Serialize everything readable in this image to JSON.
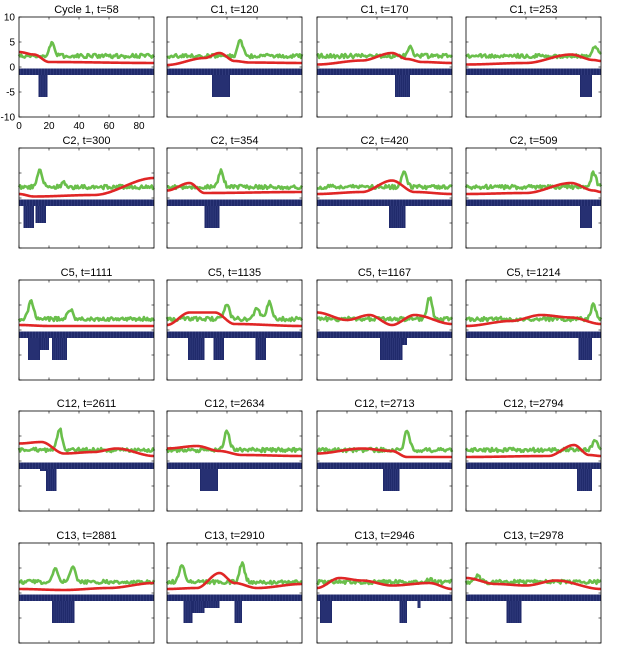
{
  "colors": {
    "green": "#6abf4b",
    "red": "#e02626",
    "bars": "#202a6b",
    "axes": "#000000"
  },
  "axes_ticks": {
    "y": [
      "10",
      "5",
      "0",
      "-5",
      "-10"
    ],
    "x": [
      "0",
      "20",
      "40",
      "60",
      "80"
    ]
  },
  "chart_data": {
    "type": "line",
    "layout": "grid of 5 rows x 4 columns",
    "x_range": [
      0,
      90
    ],
    "y_range": [
      -10,
      10
    ],
    "series_styles": [
      "green line",
      "red line",
      "navy bars (negative)"
    ],
    "panels": [
      {
        "title": "Cycle 1, t=58",
        "green_peaks": [
          [
            22,
            4.8
          ]
        ],
        "red": [
          [
            0,
            3.0
          ],
          [
            10,
            2.5
          ],
          [
            20,
            1.0
          ],
          [
            90,
            0.8
          ]
        ],
        "bars": [
          [
            13,
            19,
            -6
          ]
        ]
      },
      {
        "title": "C1, t=120",
        "green_peaks": [
          [
            49,
            5.3
          ]
        ],
        "red": [
          [
            0,
            0.4
          ],
          [
            25,
            1.8
          ],
          [
            35,
            2.8
          ],
          [
            45,
            1.2
          ],
          [
            55,
            0.9
          ],
          [
            90,
            0.8
          ]
        ],
        "bars": [
          [
            30,
            42,
            -6
          ]
        ]
      },
      {
        "title": "C1, t=170",
        "green_peaks": [
          [
            62,
            4.0
          ]
        ],
        "red": [
          [
            0,
            0.5
          ],
          [
            30,
            1.3
          ],
          [
            50,
            2.8
          ],
          [
            60,
            1.6
          ],
          [
            70,
            1.0
          ],
          [
            90,
            0.8
          ]
        ],
        "bars": [
          [
            52,
            62,
            -6
          ]
        ]
      },
      {
        "title": "C1, t=253",
        "green_peaks": [
          [
            86,
            4.2
          ]
        ],
        "red": [
          [
            0,
            0.5
          ],
          [
            40,
            0.8
          ],
          [
            70,
            2.5
          ],
          [
            85,
            1.4
          ],
          [
            90,
            1.2
          ]
        ],
        "bars": [
          [
            76,
            84,
            -6
          ]
        ]
      },
      {
        "title": "C2, t=300",
        "green_peaks": [
          [
            14,
            5.5
          ],
          [
            30,
            3.0
          ]
        ],
        "red": [
          [
            0,
            0.8
          ],
          [
            10,
            0.3
          ],
          [
            50,
            0.6
          ],
          [
            90,
            4.0
          ]
        ],
        "bars": [
          [
            3,
            10,
            -6
          ],
          [
            11,
            18,
            -5
          ]
        ]
      },
      {
        "title": "C2, t=354",
        "green_peaks": [
          [
            36,
            5.5
          ]
        ],
        "red": [
          [
            0,
            1.5
          ],
          [
            15,
            3.0
          ],
          [
            25,
            1.0
          ],
          [
            90,
            1.2
          ]
        ],
        "bars": [
          [
            25,
            35,
            -6
          ]
        ]
      },
      {
        "title": "C2, t=420",
        "green_peaks": [
          [
            58,
            5.0
          ]
        ],
        "red": [
          [
            0,
            0.8
          ],
          [
            30,
            1.2
          ],
          [
            50,
            3.5
          ],
          [
            65,
            1.2
          ],
          [
            90,
            0.8
          ]
        ],
        "bars": [
          [
            48,
            59,
            -6
          ]
        ]
      },
      {
        "title": "C2, t=509",
        "green_peaks": [
          [
            85,
            5.0
          ]
        ],
        "red": [
          [
            0,
            0.8
          ],
          [
            40,
            1.0
          ],
          [
            70,
            3.0
          ],
          [
            85,
            1.5
          ],
          [
            90,
            1.2
          ]
        ],
        "bars": [
          [
            76,
            84,
            -6
          ]
        ]
      },
      {
        "title": "C5, t=1111",
        "green_peaks": [
          [
            8,
            6.0
          ],
          [
            34,
            4.2
          ]
        ],
        "red": [
          [
            0,
            1.0
          ],
          [
            20,
            0.8
          ],
          [
            90,
            0.8
          ]
        ],
        "bars": [
          [
            6,
            14,
            -6
          ],
          [
            14,
            20,
            -4
          ],
          [
            22,
            32,
            -6
          ]
        ]
      },
      {
        "title": "C5, t=1135",
        "green_peaks": [
          [
            40,
            5.0
          ],
          [
            60,
            4.5
          ],
          [
            68,
            5.5
          ]
        ],
        "red": [
          [
            0,
            1.0
          ],
          [
            15,
            3.5
          ],
          [
            32,
            3.5
          ],
          [
            45,
            1.2
          ],
          [
            90,
            0.8
          ]
        ],
        "bars": [
          [
            14,
            25,
            -6
          ],
          [
            31,
            38,
            -6
          ],
          [
            59,
            66,
            -6
          ]
        ]
      },
      {
        "title": "C5, t=1167",
        "green_peaks": [
          [
            75,
            6.5
          ]
        ],
        "red": [
          [
            0,
            3.5
          ],
          [
            20,
            2.0
          ],
          [
            35,
            3.0
          ],
          [
            50,
            1.0
          ],
          [
            65,
            3.0
          ],
          [
            90,
            1.2
          ]
        ],
        "bars": [
          [
            42,
            57,
            -6
          ],
          [
            57,
            60,
            -3
          ]
        ]
      },
      {
        "title": "C5, t=1214",
        "green_peaks": [
          [
            85,
            5.0
          ]
        ],
        "red": [
          [
            0,
            0.8
          ],
          [
            30,
            1.8
          ],
          [
            50,
            3.0
          ],
          [
            70,
            2.5
          ],
          [
            90,
            1.2
          ]
        ],
        "bars": [
          [
            75,
            84,
            -6
          ]
        ]
      },
      {
        "title": "C12, t=2611",
        "green_peaks": [
          [
            27,
            6.5
          ]
        ],
        "red": [
          [
            0,
            3.5
          ],
          [
            15,
            3.8
          ],
          [
            30,
            1.5
          ],
          [
            50,
            1.8
          ],
          [
            65,
            2.5
          ],
          [
            90,
            1.0
          ]
        ],
        "bars": [
          [
            14,
            18,
            -2
          ],
          [
            18,
            25,
            -6
          ]
        ]
      },
      {
        "title": "C12, t=2634",
        "green_peaks": [
          [
            40,
            6.0
          ]
        ],
        "red": [
          [
            0,
            2.5
          ],
          [
            20,
            3.0
          ],
          [
            35,
            2.0
          ],
          [
            50,
            1.2
          ],
          [
            90,
            1.0
          ]
        ],
        "bars": [
          [
            22,
            34,
            -6
          ]
        ]
      },
      {
        "title": "C12, t=2713",
        "green_peaks": [
          [
            60,
            6.0
          ]
        ],
        "red": [
          [
            0,
            1.5
          ],
          [
            30,
            2.5
          ],
          [
            50,
            2.0
          ],
          [
            60,
            0.8
          ],
          [
            90,
            0.8
          ]
        ],
        "bars": [
          [
            44,
            55,
            -6
          ]
        ]
      },
      {
        "title": "C12, t=2794",
        "green_peaks": [
          [
            86,
            4.0
          ]
        ],
        "red": [
          [
            0,
            0.8
          ],
          [
            55,
            1.0
          ],
          [
            72,
            3.2
          ],
          [
            82,
            1.2
          ],
          [
            90,
            1.0
          ]
        ],
        "bars": [
          [
            74,
            84,
            -6
          ]
        ]
      },
      {
        "title": "C13, t=2881",
        "green_peaks": [
          [
            24,
            5.0
          ],
          [
            36,
            5.5
          ]
        ],
        "red": [
          [
            0,
            0.8
          ],
          [
            30,
            0.6
          ],
          [
            60,
            1.0
          ],
          [
            90,
            2.0
          ]
        ],
        "bars": [
          [
            22,
            37,
            -6
          ]
        ]
      },
      {
        "title": "C13, t=2910",
        "green_peaks": [
          [
            10,
            5.5
          ],
          [
            50,
            6.0
          ]
        ],
        "red": [
          [
            0,
            0.8
          ],
          [
            20,
            1.0
          ],
          [
            35,
            4.0
          ],
          [
            45,
            2.0
          ],
          [
            60,
            1.0
          ],
          [
            90,
            1.8
          ]
        ],
        "bars": [
          [
            11,
            17,
            -6
          ],
          [
            17,
            25,
            -4
          ],
          [
            25,
            35,
            -3
          ],
          [
            45,
            50,
            -6
          ]
        ]
      },
      {
        "title": "C13, t=2946",
        "green_peaks": [
          [
            75,
            2.8
          ]
        ],
        "red": [
          [
            0,
            1.0
          ],
          [
            15,
            3.0
          ],
          [
            30,
            2.5
          ],
          [
            50,
            1.5
          ],
          [
            75,
            2.0
          ],
          [
            90,
            0.8
          ]
        ],
        "bars": [
          [
            2,
            10,
            -6
          ],
          [
            55,
            60,
            -6
          ],
          [
            67,
            69,
            -3
          ]
        ]
      },
      {
        "title": "C13, t=2978",
        "green_peaks": [
          [
            8,
            3.5
          ]
        ],
        "red": [
          [
            0,
            3.0
          ],
          [
            20,
            1.8
          ],
          [
            40,
            1.5
          ],
          [
            60,
            2.5
          ],
          [
            90,
            0.8
          ]
        ],
        "bars": [
          [
            27,
            37,
            -6
          ]
        ]
      }
    ]
  }
}
